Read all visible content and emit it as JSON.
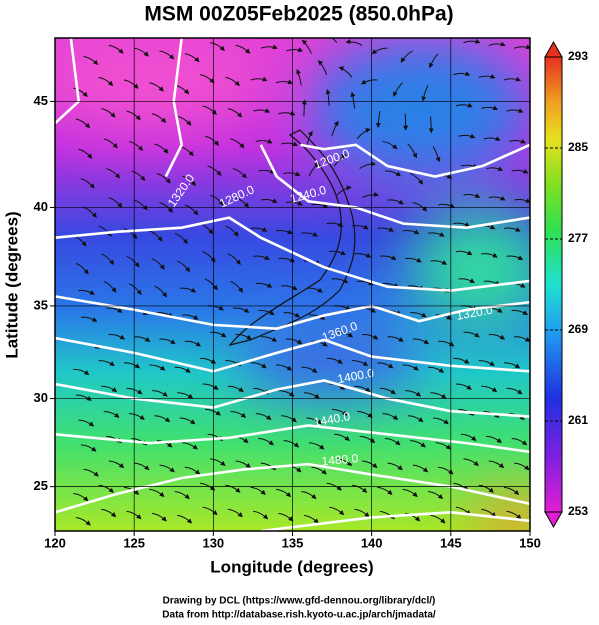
{
  "chart_data": {
    "type": "map",
    "title": "MSM 00Z05Feb2025 (850.0hPa)",
    "x_label": "Longitude (degrees)",
    "y_label": "Latitude  (degrees)",
    "xlim": [
      120,
      150
    ],
    "ylim": [
      22.4,
      47.8
    ],
    "xticks": [
      120,
      125,
      130,
      135,
      140,
      145,
      150
    ],
    "yticks": [
      25,
      30,
      35,
      40,
      45
    ],
    "grid": true,
    "colorbar": {
      "clim": [
        253,
        293
      ],
      "ticks": [
        253,
        261,
        269,
        277,
        285,
        293
      ]
    },
    "annotations": [
      "1200.0",
      "1240.0",
      "1280.0",
      "1320.0",
      "1320.0",
      "1360.0",
      "1400.0",
      "1440.0",
      "1480.0"
    ],
    "credits": [
      "Drawing by DCL (https://www.gfd-dennou.org/library/dcl/)",
      "Data from http://database.rish.kyoto-u.ac.jp/arch/jmadata/"
    ]
  }
}
